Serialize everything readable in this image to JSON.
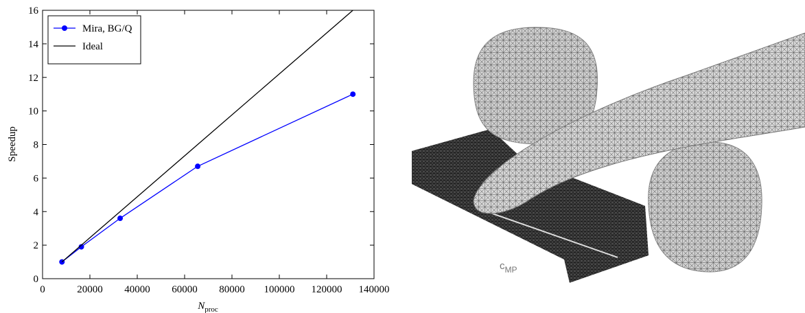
{
  "chart_data": {
    "type": "line",
    "xlabel": "N",
    "xlabel_sub": "proc",
    "ylabel": "Speedup",
    "x": [
      8192,
      16384,
      32768,
      65536,
      131072
    ],
    "series": [
      {
        "name": "Mira, BG/Q",
        "color": "#0000ff",
        "marker": "circle",
        "values": [
          1,
          1.9,
          3.6,
          6.7,
          11.0
        ]
      },
      {
        "name": "Ideal",
        "color": "#000000",
        "marker": "none",
        "values": [
          1,
          2,
          4,
          8,
          16
        ]
      }
    ],
    "xlim": [
      0,
      140000
    ],
    "xticks": [
      0,
      20000,
      40000,
      60000,
      80000,
      100000,
      120000,
      140000
    ],
    "ylim": [
      0,
      16
    ],
    "yticks": [
      0,
      2,
      4,
      6,
      8,
      10,
      12,
      14,
      16
    ],
    "grid": false,
    "legend": "upper left"
  },
  "image_label": {
    "main": "c",
    "sub": "MP"
  }
}
